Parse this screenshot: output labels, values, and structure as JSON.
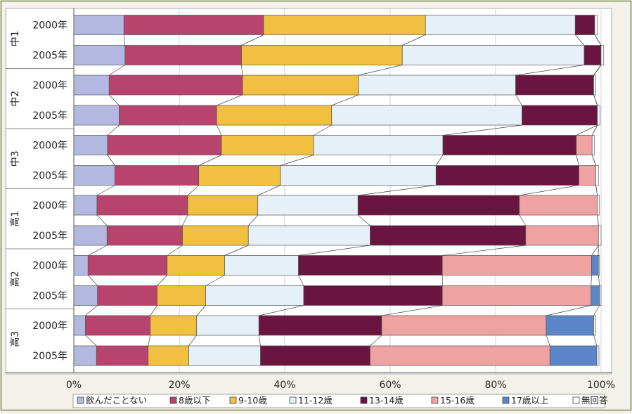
{
  "chart_data": {
    "type": "bar",
    "orientation": "horizontal",
    "stacked": true,
    "percent": true,
    "xlim": [
      0,
      100
    ],
    "ticks": [
      "0%",
      "20%",
      "40%",
      "60%",
      "80%",
      "100%"
    ],
    "groups": [
      {
        "label": "中1",
        "years": [
          "2000年",
          "2005年"
        ]
      },
      {
        "label": "中2",
        "years": [
          "2000年",
          "2005年"
        ]
      },
      {
        "label": "中3",
        "years": [
          "2000年",
          "2005年"
        ]
      },
      {
        "label": "高1",
        "years": [
          "2000年",
          "2005年"
        ]
      },
      {
        "label": "高2",
        "years": [
          "2000年",
          "2005年"
        ]
      },
      {
        "label": "高3",
        "years": [
          "2000年",
          "2005年"
        ]
      }
    ],
    "series": [
      {
        "name": "飲んだことない",
        "color": "#b3b8e0",
        "values": [
          9.5,
          9.7,
          6.7,
          8.6,
          6.4,
          7.8,
          4.4,
          6.3,
          2.7,
          4.5,
          2.2,
          4.3
        ]
      },
      {
        "name": "8歳以下",
        "color": "#b8446e",
        "values": [
          26.5,
          22.1,
          25.3,
          18.5,
          21.6,
          15.9,
          17.2,
          14.3,
          15.0,
          11.3,
          12.3,
          9.8
        ]
      },
      {
        "name": "9-10歳",
        "color": "#f2c040",
        "values": [
          30.7,
          30.5,
          22.0,
          21.8,
          17.5,
          15.5,
          13.3,
          12.5,
          10.9,
          9.2,
          8.8,
          7.7
        ]
      },
      {
        "name": "11-12歳",
        "color": "#e6f0f8",
        "values": [
          28.4,
          34.5,
          29.8,
          36.1,
          24.5,
          29.5,
          19.0,
          23.1,
          14.0,
          18.6,
          11.8,
          13.6
        ]
      },
      {
        "name": "13-14歳",
        "color": "#6a1440",
        "values": [
          3.7,
          3.2,
          14.8,
          14.3,
          25.3,
          27.1,
          30.6,
          29.5,
          27.3,
          26.3,
          23.3,
          20.8
        ]
      },
      {
        "name": "15-16歳",
        "color": "#eea2a2",
        "values": [
          0,
          0,
          0,
          0,
          3.0,
          3.2,
          14.8,
          13.8,
          28.3,
          28.2,
          31.2,
          34.1
        ]
      },
      {
        "name": "17歳以上",
        "color": "#5a86c8",
        "values": [
          0,
          0,
          0,
          0,
          0,
          0,
          0,
          0,
          1.3,
          1.6,
          9.0,
          8.9
        ]
      },
      {
        "name": "無回答",
        "color": "#ffffff",
        "values": [
          0.5,
          0.5,
          0.4,
          0.5,
          0.4,
          0.5,
          0.4,
          0.5,
          0.2,
          0.3,
          0.4,
          0.4
        ]
      }
    ]
  }
}
